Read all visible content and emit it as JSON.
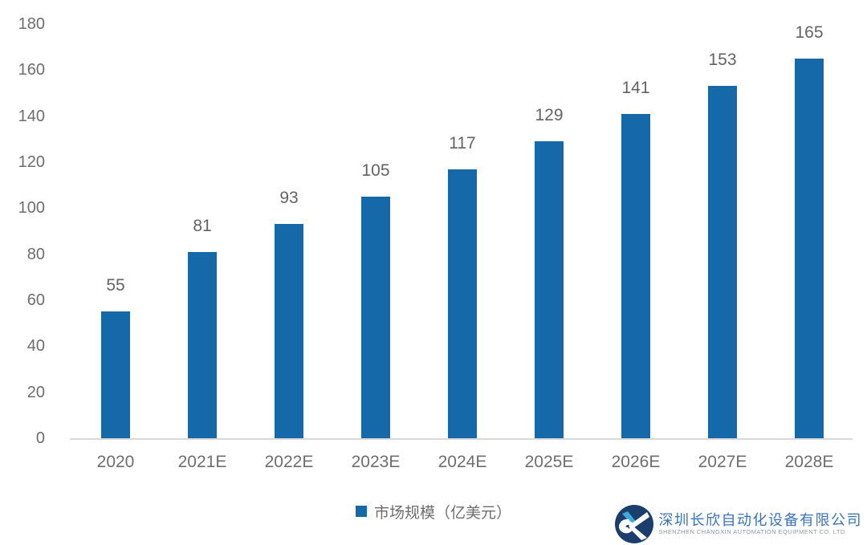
{
  "chart_data": {
    "type": "bar",
    "categories": [
      "2020",
      "2021E",
      "2022E",
      "2023E",
      "2024E",
      "2025E",
      "2026E",
      "2027E",
      "2028E"
    ],
    "values": [
      55,
      81,
      93,
      105,
      117,
      129,
      141,
      153,
      165
    ],
    "series_name": "市场规模（亿美元）",
    "title": "",
    "xlabel": "",
    "ylabel": "",
    "ylim": [
      0,
      180
    ],
    "yticks": [
      0,
      20,
      40,
      60,
      80,
      100,
      120,
      140,
      160,
      180
    ],
    "grid": false,
    "legend_position": "bottom-center",
    "bar_color": "#1669a8",
    "tick_label_color": "#6e6e6e",
    "axis_line_color": "#d9d9d9"
  },
  "legend": {
    "label": "市场规模（亿美元）"
  },
  "footer": {
    "company_name_zh": "深圳长欣自动化设备有限公司",
    "company_name_en": "SHENZHEN CHANGXIN AUTOMATION EQUIPMENT CO. LTD",
    "logo_navy": "#1c3e6d",
    "logo_accent": "#3fa9dc"
  }
}
